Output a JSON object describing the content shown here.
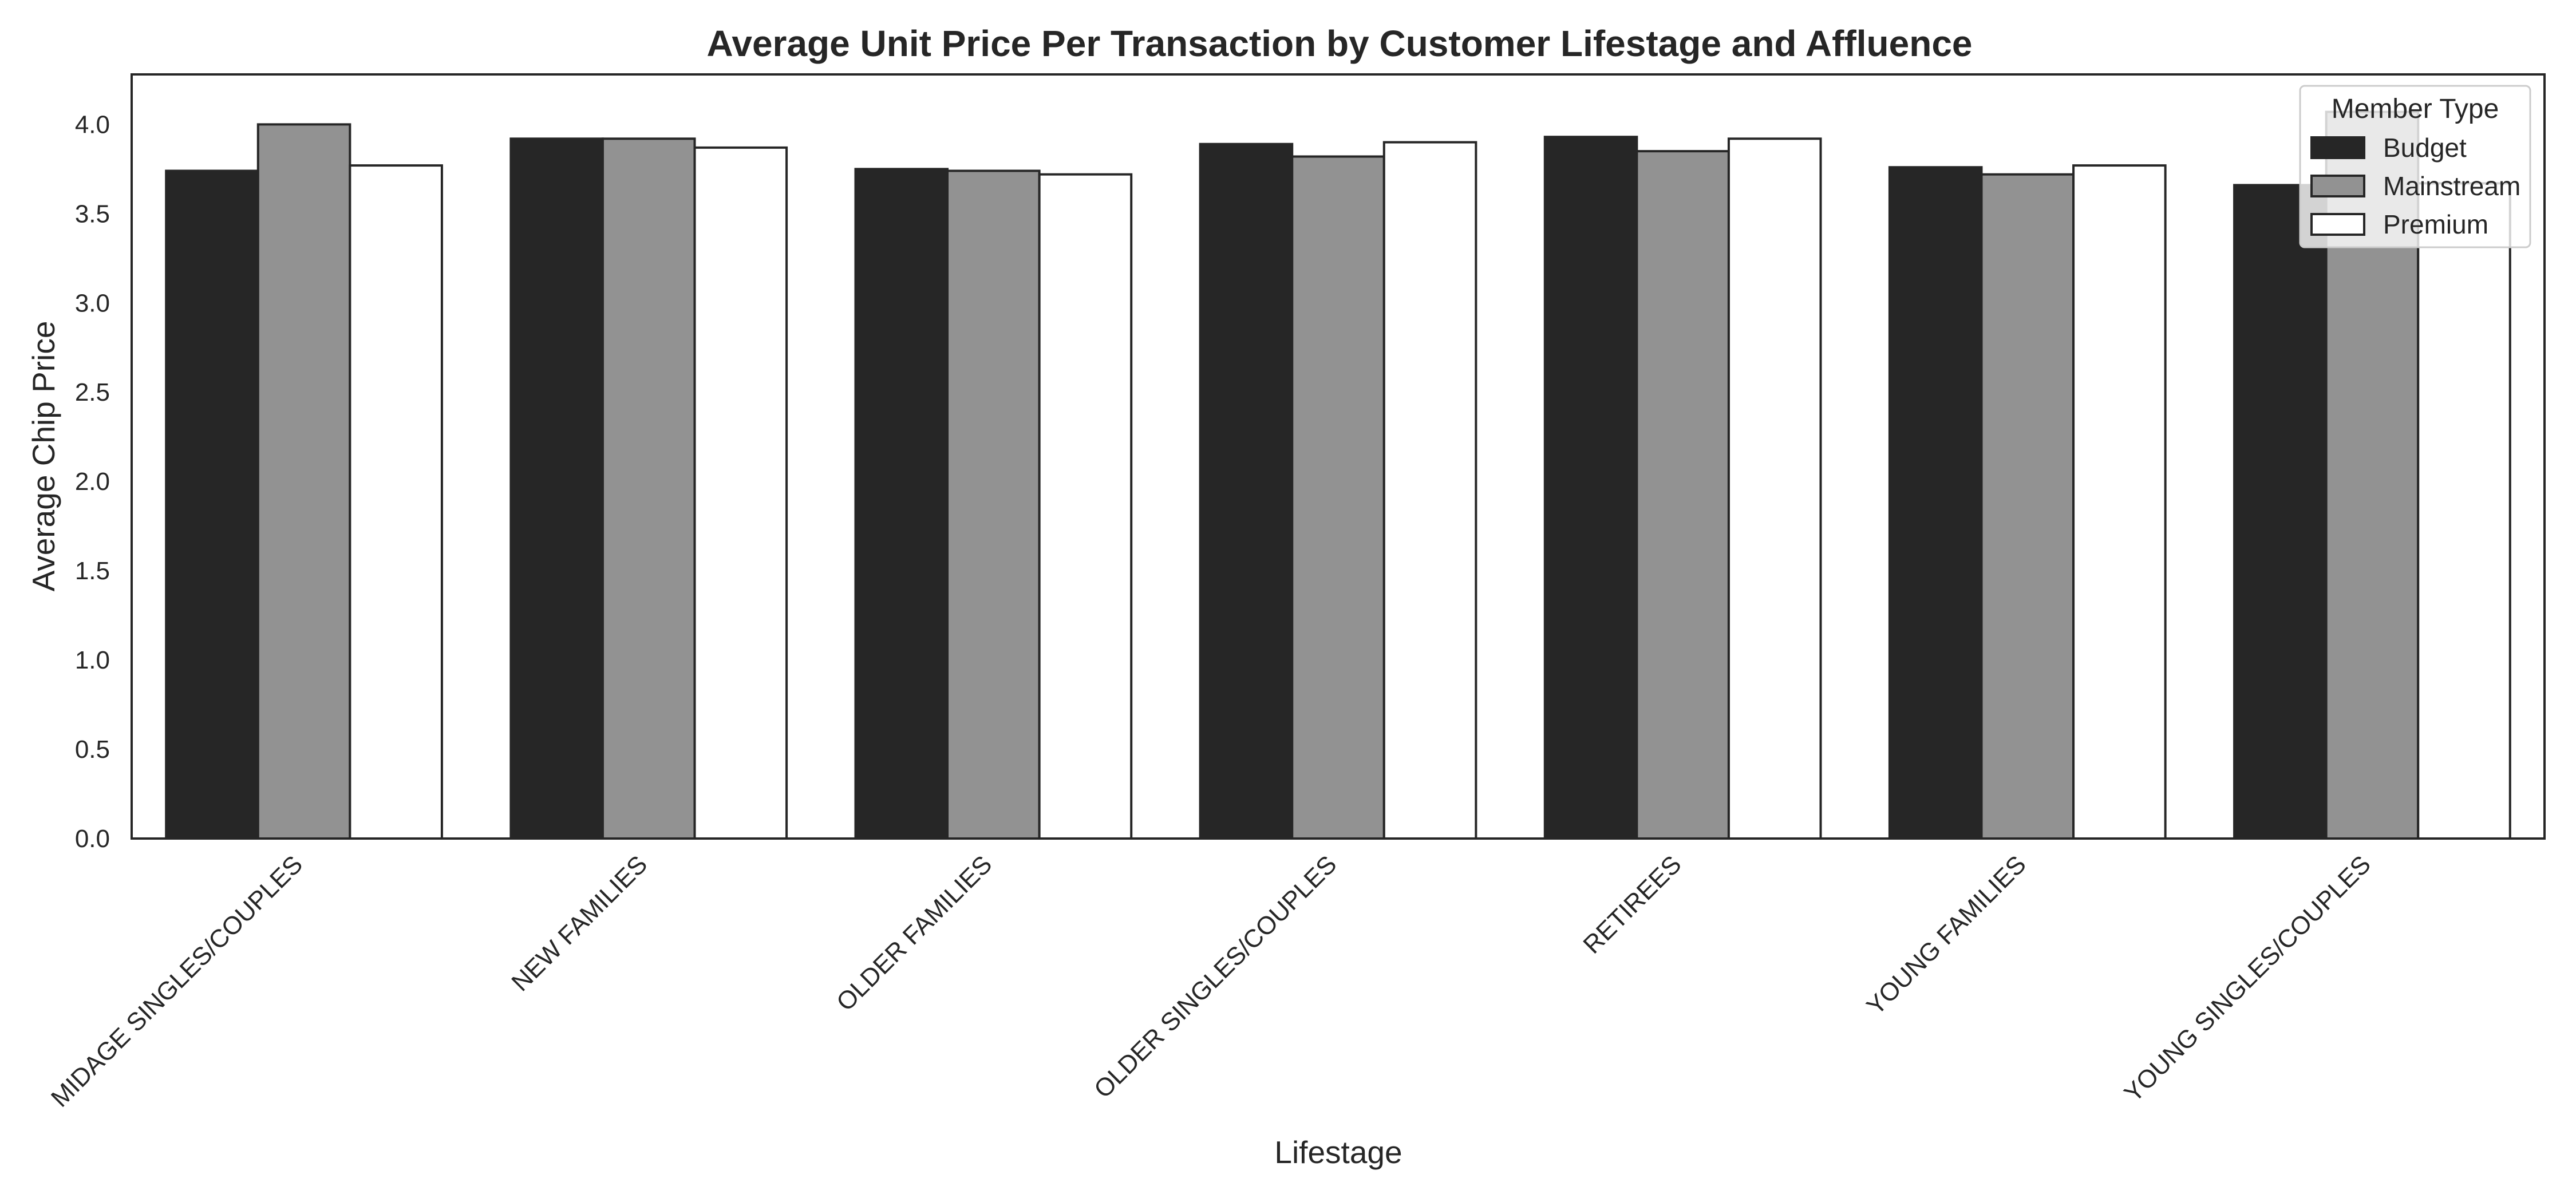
{
  "chart_data": {
    "type": "bar",
    "title": "Average Unit Price Per Transaction by Customer Lifestage and Affluence",
    "xlabel": "Lifestage",
    "ylabel": "Average Chip Price",
    "ylim": [
      0,
      4.28
    ],
    "yticks": [
      "0.0",
      "0.5",
      "1.0",
      "1.5",
      "2.0",
      "2.5",
      "3.0",
      "3.5",
      "4.0"
    ],
    "grid": false,
    "legend_title": "Member Type",
    "legend_position": "top-right",
    "categories": [
      "MIDAGE SINGLES/COUPLES",
      "NEW FAMILIES",
      "OLDER FAMILIES",
      "OLDER SINGLES/COUPLES",
      "RETIREES",
      "YOUNG FAMILIES",
      "YOUNG SINGLES/COUPLES"
    ],
    "series": [
      {
        "name": "Budget",
        "color": "#262626",
        "values": [
          3.74,
          3.92,
          3.75,
          3.89,
          3.93,
          3.76,
          3.66
        ]
      },
      {
        "name": "Mainstream",
        "color": "#929292",
        "values": [
          4.0,
          3.92,
          3.74,
          3.82,
          3.85,
          3.72,
          4.07
        ]
      },
      {
        "name": "Premium",
        "color": "#ffffff",
        "values": [
          3.77,
          3.87,
          3.72,
          3.9,
          3.92,
          3.77,
          3.67
        ]
      }
    ]
  }
}
